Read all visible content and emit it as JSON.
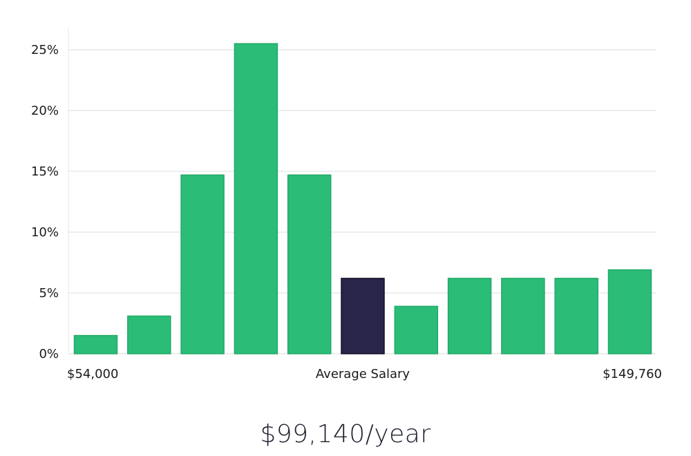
{
  "chart_data": {
    "type": "bar",
    "values": [
      1.5,
      3.1,
      14.7,
      25.5,
      14.7,
      6.2,
      3.9,
      6.2,
      6.2,
      6.2,
      6.9
    ],
    "highlight_index": 5,
    "ylim": [
      0,
      27
    ],
    "yticks": [
      0,
      5,
      10,
      15,
      20,
      25
    ],
    "ytick_labels": [
      "0%",
      "5%",
      "10%",
      "15%",
      "20%",
      "25%"
    ],
    "x_labels": {
      "left": "$54,000",
      "center": "Average Salary",
      "right": "$149,760"
    },
    "grid": true,
    "colors": {
      "bar": "#2bbd77",
      "bar_stroke": "#22a866",
      "highlight": "#28244a",
      "highlight_stroke": "#14122a"
    }
  },
  "salary_text": "$99,140/year"
}
